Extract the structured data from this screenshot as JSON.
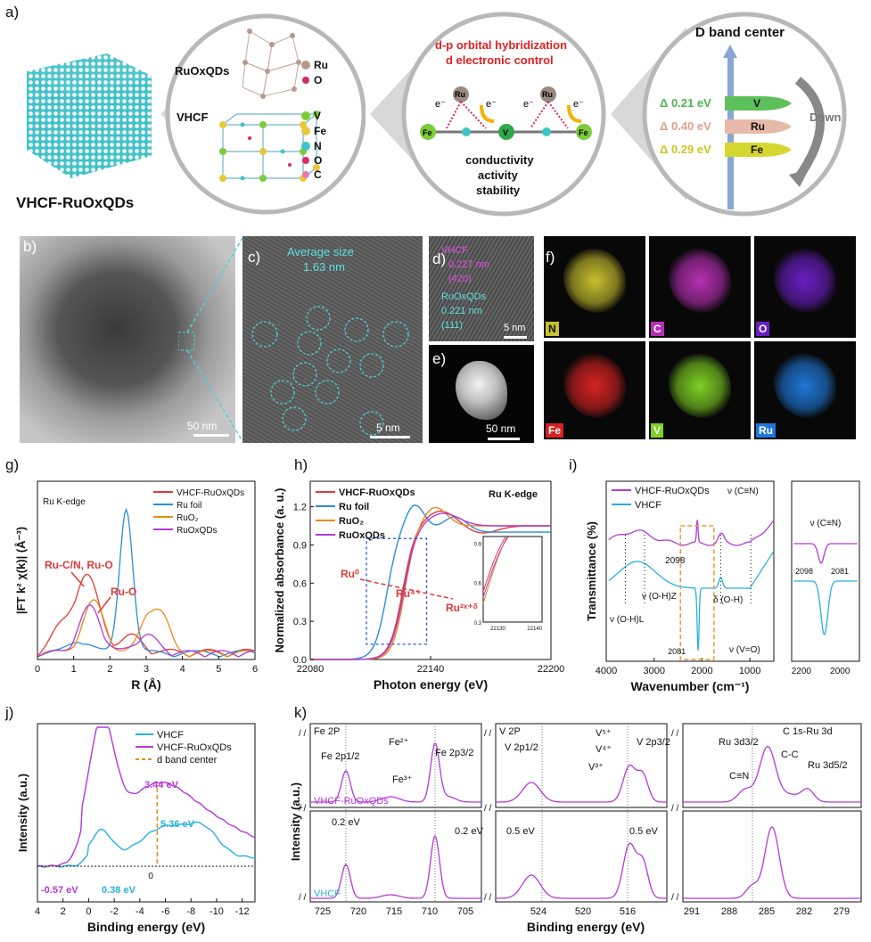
{
  "panel_a": {
    "label": "a)",
    "cube_caption": "VHCF-RuOxQDs",
    "ruox_label": "RuOxQDs",
    "vhcf_label": "VHCF",
    "legend_ru": "Ru",
    "legend_o": "O",
    "legend_v": "V",
    "legend_fe": "Fe",
    "legend_n": "N",
    "legend_o2": "O",
    "legend_c": "C",
    "orbital_title1": "d-p orbital hybridization",
    "orbital_title2": "d electronic control",
    "prop1": "conductivity",
    "prop2": "activity",
    "prop3": "stability",
    "dband_title": "D band center",
    "delta_v": "Δ 0.21 eV",
    "delta_ru": "Δ 0.40 eV",
    "delta_fe": "Δ 0.29 eV",
    "bar_v": "V",
    "bar_ru": "Ru",
    "bar_fe": "Fe",
    "down": "Down"
  },
  "panel_b": {
    "label": "b)",
    "scale": "50 nm"
  },
  "panel_c": {
    "label": "c)",
    "title": "Average size",
    "size": "1.63 nm",
    "scale": "5 nm"
  },
  "panel_d": {
    "label": "d)",
    "l1": "VHCF",
    "l2": "0.227 nm",
    "l3": "(420)",
    "l4": "RuOxQDs",
    "l5": "0.221 nm",
    "l6": "(111)",
    "scale": "5 nm"
  },
  "panel_e": {
    "label": "e)",
    "scale": "50 nm"
  },
  "panel_f": {
    "label": "f)",
    "maps": [
      "N",
      "C",
      "O",
      "Fe",
      "V",
      "Ru"
    ],
    "colors": [
      "#c9c12e",
      "#b62fb3",
      "#6a1fc2",
      "#d62222",
      "#7fd024",
      "#1f77d8"
    ]
  },
  "panel_g": {
    "label": "g)",
    "edge": "Ru K-edge",
    "ylabel": "|FT k² χ(k)| (Å⁻³)",
    "xlabel": "R (Å)",
    "ann1": "Ru-C/N, Ru-O",
    "ann2": "Ru-O",
    "legend": [
      "VHCF-RuOxQDs",
      "Ru foil",
      "RuO₂",
      "RuOxQDs"
    ],
    "xticks": [
      "0",
      "1",
      "2",
      "3",
      "4",
      "5",
      "6"
    ]
  },
  "panel_h": {
    "label": "h)",
    "edge": "Ru K-edge",
    "ylabel": "Normalized absorbance (a. u.)",
    "xlabel": "Photon energy (eV)",
    "legend": [
      "VHCF-RuOxQDs",
      "Ru foil",
      "RuO₂",
      "RuOxQDs"
    ],
    "xticks": [
      "22080",
      "22140",
      "22200"
    ],
    "yticks": [
      "0.0",
      "0.3",
      "0.6",
      "0.9",
      "1.2"
    ],
    "ann_ru0": "Ru⁰",
    "ann_ru4": "Ru⁴⁺",
    "ann_ru2x": "Ru²ˣ⁺ᵟ",
    "inset_xticks": [
      "22130",
      "22140"
    ],
    "inset_yticks": [
      "0.3",
      "0.6",
      "0.9"
    ]
  },
  "panel_i": {
    "label": "i)",
    "ylabel": "Transmittance (%)",
    "xlabel": "Wavenumber (cm⁻¹)",
    "legend": [
      "VHCF-RuOxQDs",
      "VHCF"
    ],
    "xticks": [
      "4000",
      "3000",
      "2000",
      "1000"
    ],
    "a_cn": "ν (C≡N)",
    "a_2098": "2098",
    "a_2081": "2081",
    "a_ohl": "ν (O-H)L",
    "a_ohz": "ν (O-H)Z",
    "a_doh": "δ (O-H)",
    "a_vo": "ν (V=O)",
    "inset_title": "ν (C≡N)",
    "inset_2098": "2098",
    "inset_2081": "2081",
    "inset_xticks": [
      "2200",
      "2000"
    ]
  },
  "panel_j": {
    "label": "j)",
    "ylabel": "Intensity (a.u.)",
    "xlabel": "Binding energy (eV)",
    "legend": [
      "VHCF",
      "VHCF-RuOxQDs",
      "d band center"
    ],
    "v344": "3.44 eV",
    "v536": "5.36 eV",
    "v057": "-0.57 eV",
    "v038": "0.38 eV",
    "zero": "0",
    "xticks": [
      "4",
      "2",
      "0",
      "-2",
      "-4",
      "-6",
      "-8",
      "-10",
      "-12"
    ]
  },
  "panel_k": {
    "label": "k)",
    "ylabel": "Intensity (a.u.)",
    "xlabel": "Binding energy (eV)",
    "fe_title": "Fe 2P",
    "fe2p12": "Fe 2p1/2",
    "fe2p32": "Fe 2p3/2",
    "fe2": "Fe²⁺",
    "fe3": "Fe³⁺",
    "fe_shift1": "0.2 eV",
    "fe_shift2": "0.2 eV",
    "v_title": "V 2P",
    "v2p12": "V 2p1/2",
    "v2p32": "V 2p3/2",
    "v5": "V⁵⁺",
    "v4": "V⁴⁺",
    "v3": "V³⁺",
    "v_shift1": "0.5 eV",
    "v_shift2": "0.5 eV",
    "c_title": "C 1s-Ru 3d",
    "ru3d32": "Ru 3d3/2",
    "ru3d52": "Ru 3d5/2",
    "cc": "C-C",
    "cn": "C≡N",
    "top_sample": "VHCF-RuOxQDs",
    "bottom_sample": "VHCF",
    "fe_xticks": [
      "725",
      "720",
      "715",
      "710",
      "705"
    ],
    "v_xticks": [
      "524",
      "520",
      "516"
    ],
    "c_xticks": [
      "291",
      "288",
      "285",
      "282",
      "279"
    ]
  }
}
